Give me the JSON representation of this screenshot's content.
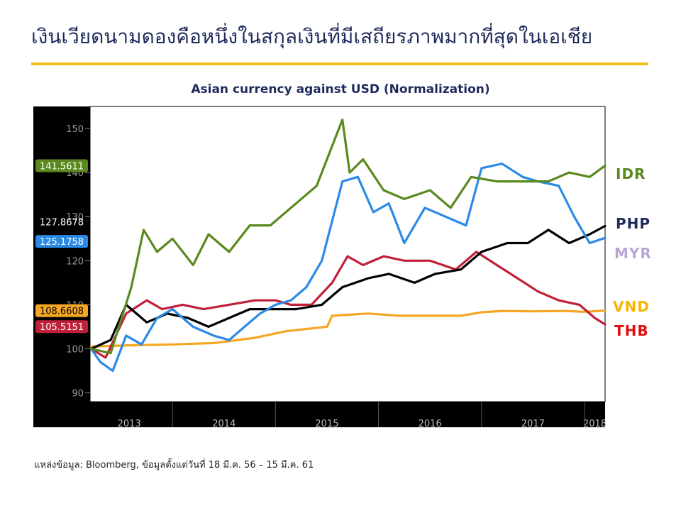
{
  "title": "เงินเวียดนามดองคือหนึ่งในสกุลเงินที่มีเสถียรภาพมากที่สุดในเอเชีย",
  "source": "แหล่งข้อมูล: Bloomberg, ข้อมูลตั้งแต่วันที่ 18 มี.ค. 56 – 15 มี.ค. 61",
  "colors": {
    "title": "#1f2a5c",
    "accent_rule": "#f2c01e",
    "plot_bg": "#ffffff",
    "axis_bg": "#000000",
    "IDR": "#5a8a1e",
    "PHP": "#000000",
    "MYR": "#2b8ae6",
    "VND": "#f5a623",
    "THB": "#c0203a"
  },
  "chart_data": {
    "type": "line",
    "title": "Asian currency against USD (Normalization)",
    "xlabel": "",
    "ylabel": "",
    "ylim": [
      88,
      155
    ],
    "xlim": [
      2013.2,
      2018.2
    ],
    "x_ticks": [
      "2013",
      "2014",
      "2015",
      "2016",
      "2017",
      "2018"
    ],
    "y_ticks": [
      90,
      100,
      110,
      120,
      130,
      140,
      150
    ],
    "grid": false,
    "legend_placement": "right",
    "last_value_tags": [
      {
        "series": "IDR",
        "text": "141.5611"
      },
      {
        "series": "PHP",
        "text": "127.8678"
      },
      {
        "series": "MYR",
        "text": "125.1758"
      },
      {
        "series": "VND",
        "text": "108.6608"
      },
      {
        "series": "THB",
        "text": "105.5151"
      }
    ],
    "series": [
      {
        "name": "IDR",
        "x": [
          2013.21,
          2013.4,
          2013.6,
          2013.72,
          2013.85,
          2014.0,
          2014.2,
          2014.35,
          2014.55,
          2014.75,
          2014.95,
          2015.15,
          2015.4,
          2015.65,
          2015.72,
          2015.85,
          2016.05,
          2016.25,
          2016.5,
          2016.7,
          2016.9,
          2017.15,
          2017.4,
          2017.65,
          2017.85,
          2018.05,
          2018.2
        ],
        "y": [
          100,
          99,
          114,
          127,
          122,
          125,
          119,
          126,
          122,
          128,
          128,
          132,
          137,
          152,
          140,
          143,
          136,
          134,
          136,
          132,
          139,
          138,
          138,
          138,
          140,
          139,
          141.56
        ]
      },
      {
        "name": "PHP",
        "x": [
          2013.21,
          2013.4,
          2013.55,
          2013.75,
          2013.95,
          2014.15,
          2014.35,
          2014.55,
          2014.75,
          2014.95,
          2015.2,
          2015.45,
          2015.65,
          2015.9,
          2016.1,
          2016.35,
          2016.55,
          2016.8,
          2017.0,
          2017.25,
          2017.45,
          2017.65,
          2017.85,
          2018.05,
          2018.2
        ],
        "y": [
          100,
          102,
          110,
          106,
          108,
          107,
          105,
          107,
          109,
          109,
          109,
          110,
          114,
          116,
          117,
          115,
          117,
          118,
          122,
          124,
          124,
          127,
          124,
          126,
          127.87
        ]
      },
      {
        "name": "MYR",
        "x": [
          2013.21,
          2013.3,
          2013.42,
          2013.55,
          2013.7,
          2013.85,
          2014.0,
          2014.2,
          2014.4,
          2014.55,
          2014.7,
          2014.85,
          2015.0,
          2015.15,
          2015.3,
          2015.45,
          2015.65,
          2015.8,
          2015.95,
          2016.1,
          2016.25,
          2016.45,
          2016.65,
          2016.85,
          2017.0,
          2017.2,
          2017.4,
          2017.55,
          2017.75,
          2017.9,
          2018.05,
          2018.2
        ],
        "y": [
          100,
          97,
          95,
          103,
          101,
          107,
          109,
          105,
          103,
          102,
          105,
          108,
          110,
          111,
          114,
          120,
          138,
          139,
          131,
          133,
          124,
          132,
          130,
          128,
          141,
          142,
          139,
          138,
          137,
          130,
          124,
          125.18
        ]
      },
      {
        "name": "VND",
        "x": [
          2013.21,
          2013.6,
          2014.0,
          2014.4,
          2014.8,
          2015.1,
          2015.5,
          2015.55,
          2015.9,
          2016.2,
          2016.5,
          2016.8,
          2017.0,
          2017.2,
          2017.5,
          2017.8,
          2018.0,
          2018.2
        ],
        "y": [
          100.5,
          100.8,
          101,
          101.3,
          102.5,
          104,
          105,
          107.5,
          108,
          107.5,
          107.5,
          107.5,
          108.3,
          108.6,
          108.5,
          108.6,
          108.4,
          108.66
        ]
      },
      {
        "name": "THB",
        "x": [
          2013.21,
          2013.35,
          2013.55,
          2013.75,
          2013.9,
          2014.1,
          2014.3,
          2014.55,
          2014.8,
          2015.0,
          2015.15,
          2015.35,
          2015.55,
          2015.7,
          2015.85,
          2016.05,
          2016.25,
          2016.5,
          2016.75,
          2016.95,
          2017.15,
          2017.35,
          2017.55,
          2017.75,
          2017.95,
          2018.1,
          2018.2
        ],
        "y": [
          100,
          98,
          108,
          111,
          109,
          110,
          109,
          110,
          111,
          111,
          110,
          110,
          115,
          121,
          119,
          121,
          120,
          120,
          118,
          122,
          119,
          116,
          113,
          111,
          110,
          107,
          105.52
        ]
      }
    ]
  }
}
